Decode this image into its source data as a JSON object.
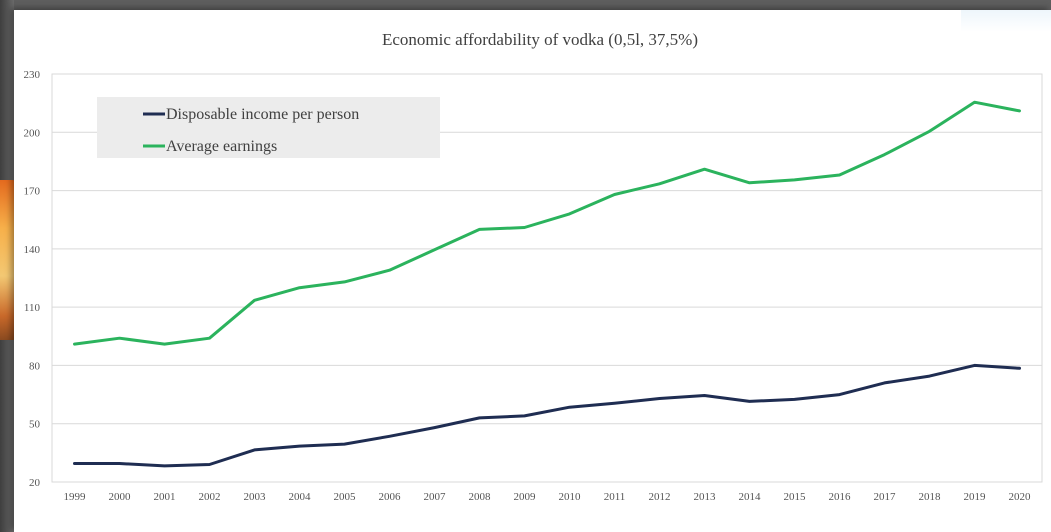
{
  "chart_data": {
    "type": "line",
    "title": "Economic affordability of vodka (0,5l, 37,5%)",
    "xlabel": "",
    "ylabel": "",
    "x": [
      "1999",
      "2000",
      "2001",
      "2002",
      "2003",
      "2004",
      "2005",
      "2006",
      "2007",
      "2008",
      "2009",
      "2010",
      "2011",
      "2012",
      "2013",
      "2014",
      "2015",
      "2016",
      "2017",
      "2018",
      "2019",
      "2020"
    ],
    "ylim": [
      20,
      230
    ],
    "yticks": [
      "20",
      "50",
      "80",
      "110",
      "140",
      "170",
      "200",
      "230"
    ],
    "grid": true,
    "legend_position": "top-left",
    "series": [
      {
        "name": "Disposable income per person",
        "color": "#1f2d52",
        "values": [
          29.5,
          29.5,
          28.3,
          29,
          36.5,
          38.5,
          39.5,
          43.5,
          48,
          53,
          54,
          58.5,
          60.5,
          63,
          64.5,
          61.5,
          62.5,
          65,
          71,
          74.5,
          80,
          78.5
        ]
      },
      {
        "name": "Average earnings",
        "color": "#2bb35d",
        "values": [
          91,
          94,
          91,
          94,
          113.5,
          120,
          123,
          129,
          139.5,
          150,
          151,
          158,
          168,
          173.5,
          181,
          174,
          175.5,
          178,
          188.5,
          200.5,
          215.5,
          211
        ]
      }
    ]
  }
}
